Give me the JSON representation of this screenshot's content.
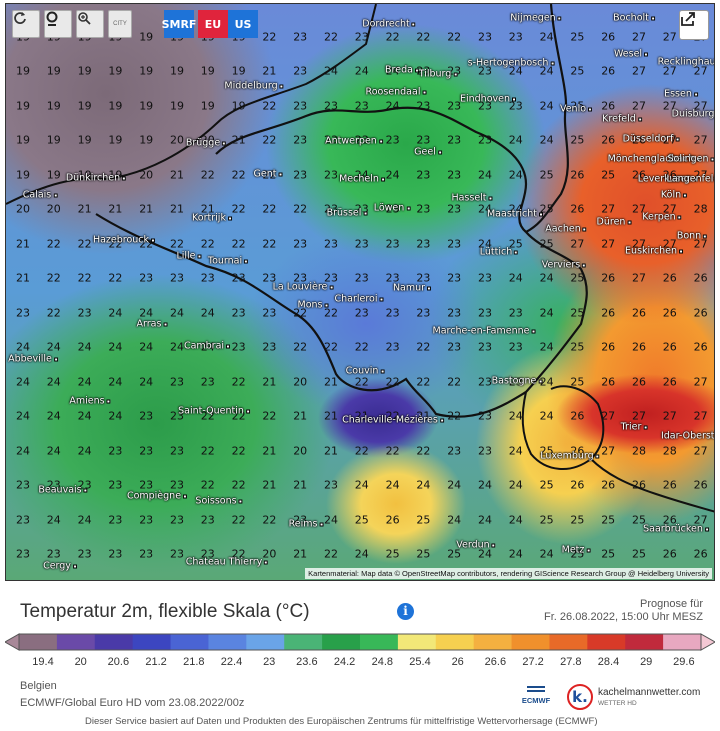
{
  "toolbar": {
    "buttons": [
      {
        "name": "reload-button",
        "icon": "refresh-icon"
      },
      {
        "name": "location-button",
        "icon": "pin-icon"
      },
      {
        "name": "zoom-button",
        "icon": "zoom-icon"
      },
      {
        "name": "city-toggle-button",
        "icon": "city-icon",
        "label": "CITY"
      }
    ],
    "regions": [
      {
        "label": "SMRF",
        "color": "#1e73d8"
      },
      {
        "label": "EU",
        "color": "#e0243c"
      },
      {
        "label": "US",
        "color": "#1e73d8"
      }
    ],
    "share_icon": "share-icon"
  },
  "map": {
    "credits": "Kartenmaterial: Map data © OpenStreetMap contributors, rendering GIScience Research Group @ Heidelberg University",
    "cities": [
      {
        "name": "Dordrecht"
      },
      {
        "name": "Nijmegen"
      },
      {
        "name": "Bocholt"
      },
      {
        "name": "Breda"
      },
      {
        "name": "Tilburg"
      },
      {
        "name": "s-Hertogenbosch"
      },
      {
        "name": "Middelburg"
      },
      {
        "name": "Wesel"
      },
      {
        "name": "Recklinghausen"
      },
      {
        "name": "Roosendaal"
      },
      {
        "name": "Eindhoven"
      },
      {
        "name": "Venlo"
      },
      {
        "name": "Krefeld"
      },
      {
        "name": "Essen"
      },
      {
        "name": "Duisburg"
      },
      {
        "name": "Düsseldorf"
      },
      {
        "name": "Antwerpen"
      },
      {
        "name": "Brügge"
      },
      {
        "name": "Geel"
      },
      {
        "name": "Mönchengladbach"
      },
      {
        "name": "Solingen"
      },
      {
        "name": "Gent"
      },
      {
        "name": "Dünkirchen"
      },
      {
        "name": "Mecheln"
      },
      {
        "name": "Leverkusen"
      },
      {
        "name": "Langenfeld"
      },
      {
        "name": "Calais"
      },
      {
        "name": "Hasselt"
      },
      {
        "name": "Köln"
      },
      {
        "name": "Löwen"
      },
      {
        "name": "Brüssel"
      },
      {
        "name": "Maastricht"
      },
      {
        "name": "Kortrijk"
      },
      {
        "name": "Aachen"
      },
      {
        "name": "Düren"
      },
      {
        "name": "Kerpen"
      },
      {
        "name": "Hazebrouck"
      },
      {
        "name": "Bonn"
      },
      {
        "name": "Lüttich"
      },
      {
        "name": "Euskirchen"
      },
      {
        "name": "Lille"
      },
      {
        "name": "Tournai"
      },
      {
        "name": "Verviers"
      },
      {
        "name": "La Louvière"
      },
      {
        "name": "Namur"
      },
      {
        "name": "Mons"
      },
      {
        "name": "Charleroi"
      },
      {
        "name": "Arras"
      },
      {
        "name": "Marche-en-Famenne"
      },
      {
        "name": "Cambrai"
      },
      {
        "name": "Abbeville"
      },
      {
        "name": "Couvin"
      },
      {
        "name": "Bastogne"
      },
      {
        "name": "Amiens"
      },
      {
        "name": "Saint-Quentin"
      },
      {
        "name": "Charleville-Mézières"
      },
      {
        "name": "Trier"
      },
      {
        "name": "Idar-Oberstein"
      },
      {
        "name": "Luxemburg"
      },
      {
        "name": "Beauvais"
      },
      {
        "name": "Compiègne"
      },
      {
        "name": "Soissons"
      },
      {
        "name": "Saarbrücken"
      },
      {
        "name": "Reims"
      },
      {
        "name": "Verdun"
      },
      {
        "name": "Metz"
      },
      {
        "name": "Chateau Thierry"
      },
      {
        "name": "Cergy"
      }
    ],
    "value_grid": [
      [
        "19",
        "19",
        "19",
        "19",
        "19",
        "19",
        "19",
        "19",
        "22",
        "23",
        "22",
        "23",
        "22",
        "22",
        "22",
        "23",
        "23",
        "24",
        "25",
        "26",
        "27",
        "27",
        "27"
      ],
      [
        "19",
        "19",
        "19",
        "19",
        "19",
        "19",
        "19",
        "19",
        "21",
        "23",
        "24",
        "24",
        "24",
        "23",
        "23",
        "23",
        "24",
        "24",
        "25",
        "26",
        "27",
        "27",
        "27"
      ],
      [
        "19",
        "19",
        "19",
        "19",
        "19",
        "19",
        "19",
        "19",
        "22",
        "23",
        "23",
        "23",
        "24",
        "23",
        "23",
        "23",
        "23",
        "24",
        "25",
        "26",
        "27",
        "27",
        "27"
      ],
      [
        "19",
        "19",
        "19",
        "19",
        "19",
        "20",
        "20",
        "21",
        "22",
        "23",
        "23",
        "23",
        "23",
        "23",
        "23",
        "23",
        "24",
        "24",
        "25",
        "26",
        "26",
        "27",
        "27"
      ],
      [
        "19",
        "19",
        "19",
        "19",
        "20",
        "21",
        "22",
        "22",
        "22",
        "23",
        "23",
        "24",
        "24",
        "23",
        "23",
        "24",
        "24",
        "25",
        "26",
        "25",
        "26",
        "26",
        "27"
      ],
      [
        "20",
        "20",
        "21",
        "21",
        "21",
        "21",
        "21",
        "22",
        "22",
        "22",
        "23",
        "23",
        "23",
        "23",
        "23",
        "24",
        "24",
        "25",
        "26",
        "27",
        "27",
        "27",
        "28"
      ],
      [
        "21",
        "22",
        "22",
        "22",
        "22",
        "22",
        "22",
        "22",
        "22",
        "23",
        "23",
        "23",
        "23",
        "23",
        "23",
        "24",
        "25",
        "25",
        "27",
        "27",
        "27",
        "27",
        "27"
      ],
      [
        "21",
        "22",
        "22",
        "22",
        "23",
        "23",
        "23",
        "23",
        "23",
        "23",
        "23",
        "23",
        "23",
        "23",
        "23",
        "23",
        "24",
        "24",
        "25",
        "26",
        "27",
        "26",
        "26"
      ],
      [
        "23",
        "22",
        "23",
        "24",
        "24",
        "24",
        "24",
        "23",
        "23",
        "22",
        "22",
        "23",
        "23",
        "23",
        "23",
        "23",
        "23",
        "24",
        "25",
        "26",
        "26",
        "26",
        "26"
      ],
      [
        "24",
        "24",
        "24",
        "24",
        "24",
        "24",
        "24",
        "23",
        "23",
        "22",
        "22",
        "22",
        "23",
        "22",
        "23",
        "23",
        "23",
        "24",
        "25",
        "26",
        "26",
        "26",
        "26"
      ],
      [
        "24",
        "24",
        "24",
        "24",
        "24",
        "23",
        "23",
        "22",
        "21",
        "20",
        "21",
        "22",
        "22",
        "22",
        "22",
        "23",
        "23",
        "24",
        "25",
        "26",
        "26",
        "26",
        "27"
      ],
      [
        "24",
        "24",
        "24",
        "24",
        "23",
        "23",
        "22",
        "22",
        "22",
        "21",
        "21",
        "21",
        "22",
        "21",
        "22",
        "23",
        "24",
        "24",
        "26",
        "27",
        "27",
        "27",
        "27"
      ],
      [
        "24",
        "24",
        "24",
        "23",
        "23",
        "23",
        "22",
        "22",
        "21",
        "20",
        "21",
        "22",
        "22",
        "22",
        "23",
        "23",
        "24",
        "25",
        "26",
        "27",
        "28",
        "28",
        "27"
      ],
      [
        "23",
        "23",
        "23",
        "23",
        "23",
        "23",
        "22",
        "22",
        "21",
        "21",
        "23",
        "24",
        "24",
        "24",
        "24",
        "24",
        "24",
        "25",
        "26",
        "26",
        "26",
        "26",
        "26"
      ],
      [
        "23",
        "24",
        "24",
        "23",
        "23",
        "23",
        "23",
        "22",
        "22",
        "23",
        "24",
        "25",
        "26",
        "25",
        "24",
        "24",
        "24",
        "25",
        "25",
        "25",
        "25",
        "26",
        "27"
      ],
      [
        "23",
        "23",
        "23",
        "23",
        "23",
        "23",
        "23",
        "22",
        "20",
        "21",
        "22",
        "24",
        "25",
        "25",
        "25",
        "24",
        "24",
        "24",
        "25",
        "25",
        "25",
        "26",
        "26"
      ],
      [
        "23",
        "23",
        "23",
        "23",
        "23",
        "23",
        "22",
        "22",
        "21",
        "21",
        "23",
        "24",
        "25",
        "25",
        "25",
        "24",
        "24",
        "23",
        "24",
        "24",
        "25",
        "26",
        "26"
      ]
    ]
  },
  "title": "Temperatur 2m, flexible Skala (°C)",
  "info_icon": "info-icon",
  "forecast": {
    "label": "Prognose für",
    "datetime": "Fr. 26.08.2022, 15:00 Uhr MESZ"
  },
  "scale": {
    "ticks": [
      "19.4",
      "20",
      "20.6",
      "21.2",
      "21.8",
      "22.4",
      "23",
      "23.6",
      "24.2",
      "24.8",
      "25.4",
      "26",
      "26.6",
      "27.2",
      "27.8",
      "28.4",
      "29",
      "29.6"
    ],
    "colors": [
      "#8a6e80",
      "#6a4aa8",
      "#4a3aa8",
      "#3c46c0",
      "#4a64d4",
      "#5a84e0",
      "#6aa4e8",
      "#4ab476",
      "#28a04a",
      "#38b858",
      "#f2e878",
      "#f6d050",
      "#f4b040",
      "#f0902c",
      "#e86a28",
      "#d83a28",
      "#c02a3c",
      "#e8a8c0"
    ],
    "end_color_left": "#a88898",
    "end_color_right": "#f4c8d4"
  },
  "footer": {
    "region": "Belgien",
    "model_run": "ECMWF/Global Euro HD vom 23.08.2022/00z",
    "disclaimer": "Dieser Service basiert auf Daten und Produkten des Europäischen Zentrums für mittelfristige Wettervorhersage (ECMWF)",
    "ecmwf_label": "ECMWF",
    "brand_name": "kachelmannwetter.com",
    "brand_sub": "WETTER HD",
    "brand_badge": "k."
  }
}
